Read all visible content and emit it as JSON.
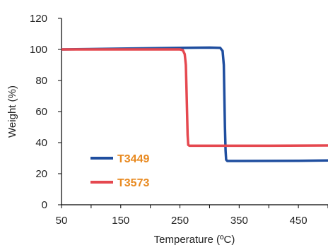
{
  "chart_data": {
    "type": "line",
    "title": "",
    "xlabel": "Temperature (ºC)",
    "ylabel": "Weight (%)",
    "xlim": [
      50,
      500
    ],
    "ylim": [
      0,
      120
    ],
    "x_ticks": [
      50,
      150,
      250,
      350,
      450
    ],
    "y_ticks": [
      0,
      20,
      40,
      60,
      80,
      100,
      120
    ],
    "grid": false,
    "legend_position": "bottom-left",
    "series": [
      {
        "name": "T3449",
        "color": "#1f4e9f",
        "x": [
          50,
          150,
          250,
          300,
          318,
          322,
          324,
          325,
          326,
          327,
          328,
          330,
          350,
          450,
          500
        ],
        "y": [
          100,
          100.5,
          101,
          101.2,
          101,
          99,
          90,
          70,
          50,
          35,
          29,
          28.2,
          28.2,
          28.3,
          28.5
        ]
      },
      {
        "name": "T3573",
        "color": "#e5484f",
        "x": [
          50,
          150,
          250,
          255,
          258,
          260,
          261,
          262,
          263,
          264,
          266,
          300,
          400,
          500
        ],
        "y": [
          100,
          100,
          100,
          99.5,
          97,
          90,
          75,
          60,
          45,
          38.5,
          38,
          38,
          38,
          38.2
        ]
      }
    ]
  }
}
